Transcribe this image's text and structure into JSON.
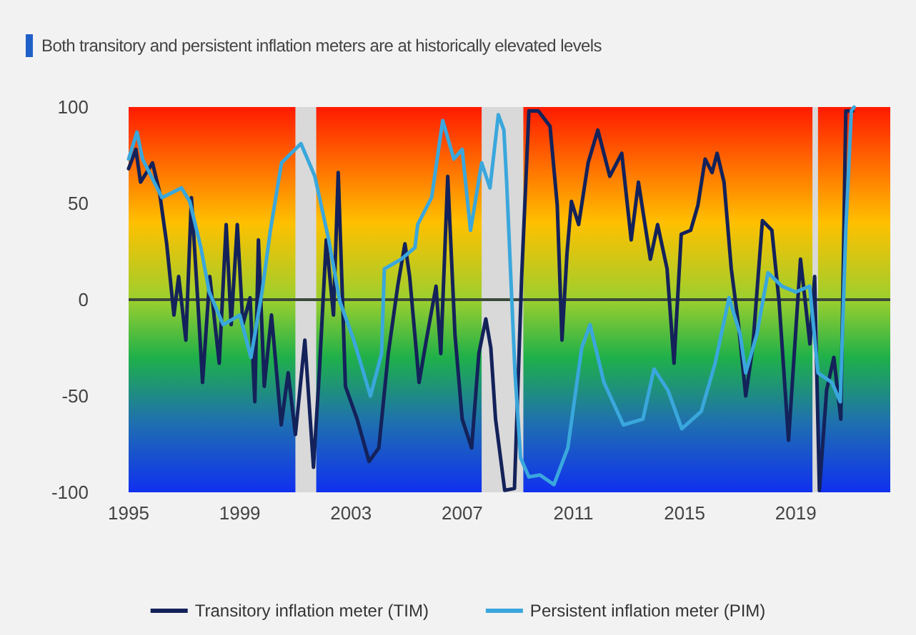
{
  "chart_data": {
    "type": "line",
    "title": "Both transitory and persistent inflation meters are at historically elevated levels",
    "xlim": [
      1995,
      2022.4
    ],
    "xticks": [
      1995,
      1999,
      2003,
      2007,
      2011,
      2015,
      2019
    ],
    "ylim": [
      -100,
      100
    ],
    "yticks": [
      -100,
      -50,
      0,
      50,
      100
    ],
    "grid": false,
    "legend": "bottom",
    "marker": "none",
    "line_style": "solid",
    "ref_lines": [
      {
        "axis": "y",
        "value": 0,
        "color": "#3a4a3a"
      }
    ],
    "bands": [
      {
        "axis": "x",
        "from": 2001.0,
        "to": 2001.75,
        "color": "#d9d9d9"
      },
      {
        "axis": "x",
        "from": 2007.7,
        "to": 2009.2,
        "color": "#d9d9d9"
      },
      {
        "axis": "x",
        "from": 2019.6,
        "to": 2019.8,
        "color": "#d9d9d9"
      }
    ],
    "series": [
      {
        "name": "Transitory inflation meter (TIM)",
        "color": "#14225a",
        "x": [
          1995.0,
          1995.26,
          1995.43,
          1995.86,
          1996.11,
          1996.37,
          1996.63,
          1996.8,
          1997.06,
          1997.26,
          1997.49,
          1997.66,
          1997.92,
          1998.26,
          1998.51,
          1998.69,
          1998.91,
          1999.11,
          1999.37,
          1999.54,
          1999.67,
          1999.88,
          2000.14,
          2000.49,
          2000.74,
          2001.0,
          2001.34,
          2001.65,
          2001.86,
          2002.11,
          2002.37,
          2002.54,
          2002.8,
          2003.22,
          2003.65,
          2004.0,
          2004.34,
          2004.68,
          2004.94,
          2005.11,
          2005.45,
          2005.71,
          2006.06,
          2006.23,
          2006.48,
          2006.74,
          2007.0,
          2007.34,
          2007.6,
          2007.85,
          2008.03,
          2008.2,
          2008.53,
          2008.88,
          2009.14,
          2009.4,
          2009.74,
          2010.16,
          2010.42,
          2010.59,
          2010.77,
          2010.93,
          2011.19,
          2011.53,
          2011.88,
          2012.31,
          2012.74,
          2013.08,
          2013.34,
          2013.77,
          2014.03,
          2014.37,
          2014.62,
          2014.88,
          2015.22,
          2015.48,
          2015.74,
          2015.99,
          2016.17,
          2016.42,
          2016.68,
          2016.94,
          2017.2,
          2017.45,
          2017.8,
          2018.14,
          2018.4,
          2018.74,
          2019.17,
          2019.51,
          2019.68,
          2019.85,
          2020.11,
          2020.37,
          2020.62,
          2020.8,
          2021.05
        ],
        "values": [
          68,
          78,
          61,
          71,
          56,
          29,
          -8,
          12,
          -21,
          53,
          -1,
          -43,
          12,
          -33,
          39,
          -13,
          39,
          -13,
          1,
          -53,
          31,
          -45,
          -8,
          -65,
          -38,
          -70,
          -21,
          -87,
          -38,
          31,
          -8,
          66,
          -45,
          -62,
          -84,
          -77,
          -28,
          7,
          29,
          12,
          -43,
          -21,
          7,
          -28,
          64,
          -18,
          -62,
          -77,
          -28,
          -10,
          -25,
          -62,
          -99,
          -98,
          12,
          98,
          98,
          90,
          49,
          -21,
          24,
          51,
          39,
          71,
          88,
          64,
          76,
          31,
          61,
          21,
          39,
          16,
          -33,
          34,
          36,
          49,
          73,
          66,
          76,
          61,
          16,
          -13,
          -50,
          -25,
          41,
          36,
          -1,
          -73,
          21,
          -23,
          12,
          -99,
          -47,
          -30,
          -62,
          98,
          98
        ]
      },
      {
        "name": "Persistent inflation meter (PIM)",
        "color": "#3aa7dc",
        "x": [
          1995.0,
          1995.3,
          1995.5,
          1996.2,
          1996.9,
          1997.2,
          1997.6,
          1997.9,
          1998.4,
          1999.0,
          1999.4,
          1999.8,
          2000.1,
          2000.5,
          2001.2,
          2001.7,
          2002.2,
          2002.6,
          2003.1,
          2003.7,
          2004.1,
          2004.2,
          2004.8,
          2005.3,
          2005.4,
          2005.9,
          2006.3,
          2006.7,
          2007.0,
          2007.3,
          2007.7,
          2008.0,
          2008.3,
          2008.5,
          2008.6,
          2008.9,
          2009.1,
          2009.4,
          2009.8,
          2010.3,
          2010.8,
          2011.3,
          2011.6,
          2012.1,
          2012.8,
          2013.5,
          2013.9,
          2014.4,
          2014.9,
          2015.6,
          2016.1,
          2016.6,
          2017.0,
          2017.2,
          2017.6,
          2018.0,
          2018.5,
          2019.0,
          2019.5,
          2019.8,
          2020.3,
          2020.6,
          2020.8,
          2021.0,
          2021.1
        ],
        "values": [
          73,
          87,
          73,
          53,
          58,
          51,
          27,
          4,
          -13,
          -8,
          -30,
          4,
          36,
          71,
          81,
          64,
          31,
          -1,
          -21,
          -50,
          -28,
          16,
          21,
          27,
          39,
          53,
          93,
          73,
          78,
          36,
          71,
          58,
          96,
          88,
          61,
          -38,
          -82,
          -92,
          -91,
          -96,
          -77,
          -25,
          -13,
          -43,
          -65,
          -62,
          -36,
          -47,
          -67,
          -58,
          -33,
          1,
          -18,
          -38,
          -18,
          14,
          7,
          4,
          7,
          -38,
          -43,
          -53,
          36,
          98,
          100
        ]
      }
    ]
  }
}
